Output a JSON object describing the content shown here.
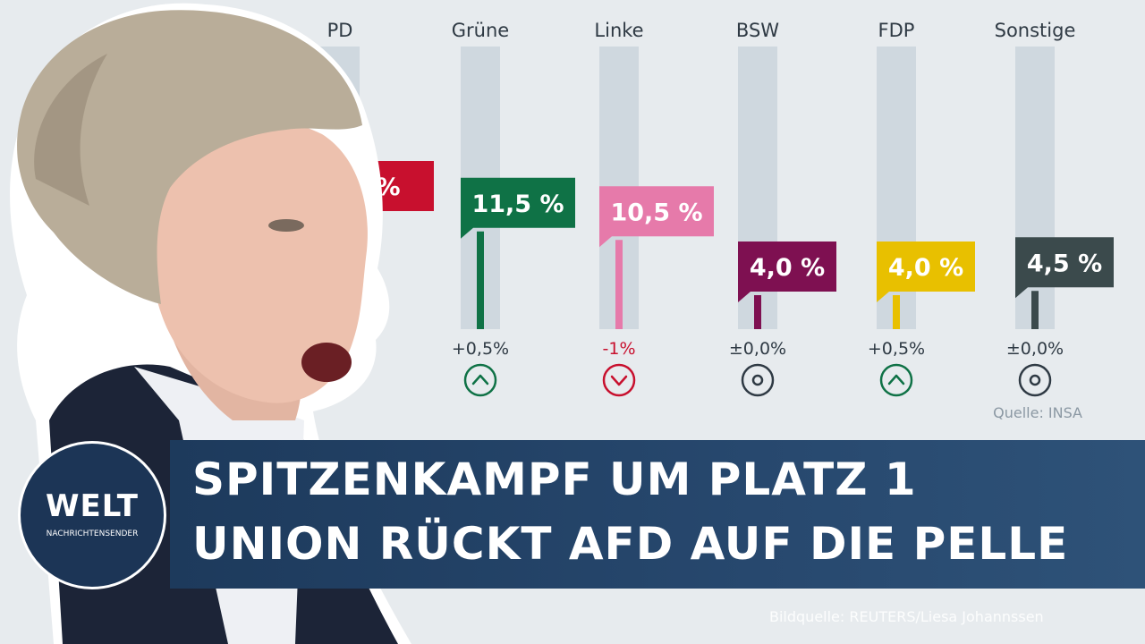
{
  "chart_data": {
    "type": "bar",
    "categories": [
      "SPD",
      "Grüne",
      "Linke",
      "BSW",
      "FDP",
      "Sonstige"
    ],
    "visible_category_labels": [
      "PD",
      "Grüne",
      "Linke",
      "BSW",
      "FDP",
      "Sonstige"
    ],
    "values": [
      null,
      11.5,
      10.5,
      4.0,
      4.0,
      4.5
    ],
    "value_labels": [
      "0 %",
      "11,5 %",
      "10,5 %",
      "4,0 %",
      "4,0 %",
      "4,5 %"
    ],
    "changes": [
      "%",
      "+0,5%",
      "-1%",
      "±0,0%",
      "+0,5%",
      "±0,0%"
    ],
    "change_direction": [
      "down",
      "up",
      "down",
      "neutral",
      "up",
      "neutral"
    ],
    "colors": [
      "#c8102e",
      "#0f7246",
      "#e67aaa",
      "#7e1051",
      "#e8c000",
      "#3b4a4c"
    ],
    "source": "Quelle: INSA"
  },
  "headline": {
    "line1": "SPITZENKAMPF UM PLATZ 1",
    "line2": "UNION RÜCKT AFD AUF DIE PELLE"
  },
  "logo": {
    "main": "WELT",
    "sub": "NACHRICHTENSENDER"
  },
  "credit": "Bildquelle: REUTERS/Liesa Johannssen"
}
